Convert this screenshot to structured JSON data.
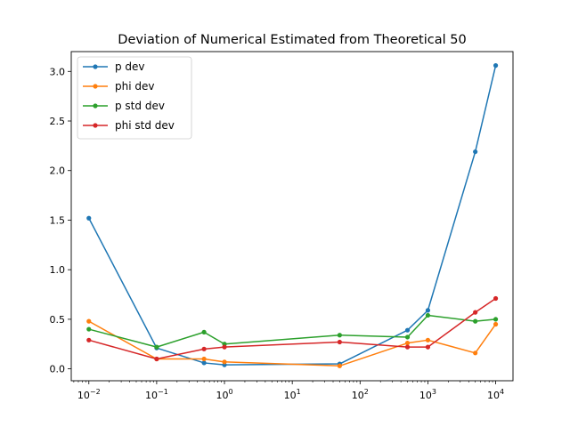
{
  "chart_data": {
    "type": "line",
    "title": "Deviation of Numerical Estimated from Theoretical 50",
    "xlabel": "",
    "ylabel": "",
    "xscale": "log",
    "xlim": [
      0.0055,
      18000
    ],
    "ylim": [
      -0.12,
      3.2
    ],
    "grid": false,
    "legend_position": "top-left",
    "x_ticks": [
      {
        "value": 0.01,
        "base": "10",
        "exp": "−2"
      },
      {
        "value": 0.1,
        "base": "10",
        "exp": "−1"
      },
      {
        "value": 1,
        "base": "10",
        "exp": "0"
      },
      {
        "value": 10,
        "base": "10",
        "exp": "1"
      },
      {
        "value": 100,
        "base": "10",
        "exp": "2"
      },
      {
        "value": 1000,
        "base": "10",
        "exp": "3"
      },
      {
        "value": 10000,
        "base": "10",
        "exp": "4"
      }
    ],
    "y_ticks": [
      {
        "value": 0.0,
        "label": "0.0"
      },
      {
        "value": 0.5,
        "label": "0.5"
      },
      {
        "value": 1.0,
        "label": "1.0"
      },
      {
        "value": 1.5,
        "label": "1.5"
      },
      {
        "value": 2.0,
        "label": "2.0"
      },
      {
        "value": 2.5,
        "label": "2.5"
      },
      {
        "value": 3.0,
        "label": "3.0"
      }
    ],
    "x": [
      0.01,
      0.1,
      0.5,
      1,
      50,
      500,
      1000,
      5000,
      10000
    ],
    "series": [
      {
        "name": "p dev",
        "color": "#1f77b4",
        "values": [
          1.52,
          0.21,
          0.06,
          0.04,
          0.05,
          0.39,
          0.59,
          2.19,
          3.06
        ]
      },
      {
        "name": "phi dev",
        "color": "#ff7f0e",
        "values": [
          0.48,
          0.1,
          0.1,
          0.07,
          0.03,
          0.26,
          0.29,
          0.16,
          0.45
        ]
      },
      {
        "name": "p std dev",
        "color": "#2ca02c",
        "values": [
          0.4,
          0.22,
          0.37,
          0.25,
          0.34,
          0.32,
          0.54,
          0.48,
          0.5
        ]
      },
      {
        "name": "phi std dev",
        "color": "#d62728",
        "values": [
          0.29,
          0.1,
          0.2,
          0.22,
          0.27,
          0.22,
          0.22,
          0.57,
          0.71
        ]
      }
    ]
  }
}
